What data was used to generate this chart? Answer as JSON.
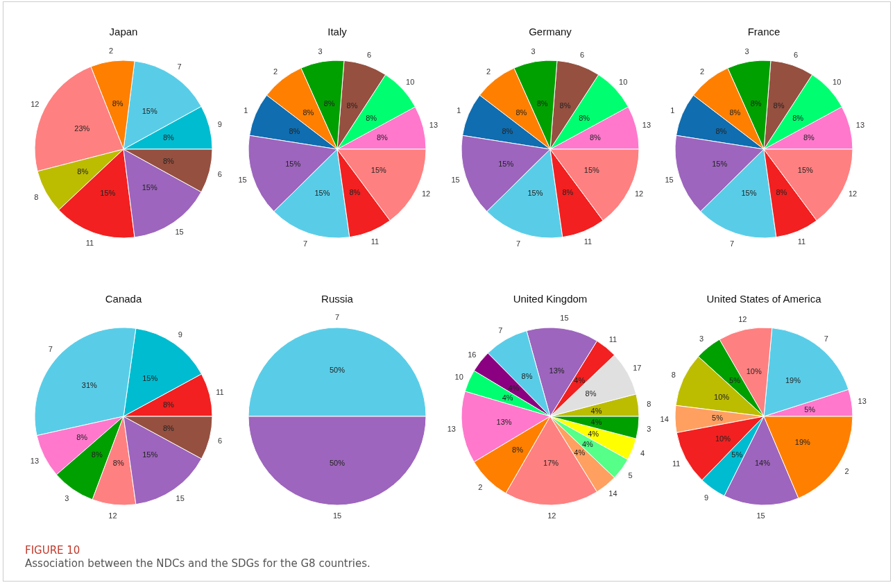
{
  "chart_data": [
    {
      "type": "pie",
      "title": "Japan",
      "categories": [
        "9",
        "7",
        "2",
        "12",
        "8",
        "11",
        "15",
        "6"
      ],
      "values": [
        8,
        15,
        8,
        23,
        8,
        15,
        15,
        8
      ],
      "value_labels": [
        "8%",
        "15%",
        "8%",
        "23%",
        "8%",
        "15%",
        "15%",
        "8%"
      ],
      "colors": [
        "#00bcd0",
        "#59cde8",
        "#ff7f00",
        "#ff8080",
        "#bcbc00",
        "#f22020",
        "#9d65bd",
        "#955040"
      ],
      "annotations": [
        "FIGURE 10",
        "Association between the NDCs and the SDGs for the G8 countries."
      ]
    },
    {
      "type": "pie",
      "title": "Italy",
      "categories": [
        "13",
        "10",
        "6",
        "3",
        "2",
        "1",
        "15",
        "7",
        "11",
        "12"
      ],
      "values": [
        8,
        8,
        8,
        8,
        8,
        8,
        15,
        15,
        8,
        15
      ],
      "value_labels": [
        "8%",
        "8%",
        "8%",
        "8%",
        "8%",
        "8%",
        "15%",
        "15%",
        "8%",
        "15%"
      ],
      "colors": [
        "#ff78cc",
        "#00ff70",
        "#955040",
        "#00a000",
        "#ff7f00",
        "#0f6db0",
        "#9d65bd",
        "#59cde8",
        "#f22020",
        "#ff8080"
      ]
    },
    {
      "type": "pie",
      "title": "Germany",
      "categories": [
        "13",
        "10",
        "6",
        "3",
        "2",
        "1",
        "15",
        "7",
        "11",
        "12"
      ],
      "values": [
        8,
        8,
        8,
        8,
        8,
        8,
        15,
        15,
        8,
        15
      ],
      "value_labels": [
        "8%",
        "8%",
        "8%",
        "8%",
        "8%",
        "8%",
        "15%",
        "15%",
        "8%",
        "15%"
      ],
      "colors": [
        "#ff78cc",
        "#00ff70",
        "#955040",
        "#00a000",
        "#ff7f00",
        "#0f6db0",
        "#9d65bd",
        "#59cde8",
        "#f22020",
        "#ff8080"
      ]
    },
    {
      "type": "pie",
      "title": "France",
      "categories": [
        "13",
        "10",
        "6",
        "3",
        "2",
        "1",
        "15",
        "7",
        "11",
        "12"
      ],
      "values": [
        8,
        8,
        8,
        8,
        8,
        8,
        15,
        15,
        8,
        15
      ],
      "value_labels": [
        "8%",
        "8%",
        "8%",
        "8%",
        "8%",
        "8%",
        "15%",
        "15%",
        "8%",
        "15%"
      ],
      "colors": [
        "#ff78cc",
        "#00ff70",
        "#955040",
        "#00a000",
        "#ff7f00",
        "#0f6db0",
        "#9d65bd",
        "#59cde8",
        "#f22020",
        "#ff8080"
      ]
    },
    {
      "type": "pie",
      "title": "Canada",
      "categories": [
        "11",
        "9",
        "7",
        "13",
        "3",
        "12",
        "15",
        "6"
      ],
      "values": [
        8,
        15,
        31,
        8,
        8,
        8,
        15,
        8
      ],
      "value_labels": [
        "8%",
        "15%",
        "31%",
        "8%",
        "8%",
        "8%",
        "15%",
        "8%"
      ],
      "colors": [
        "#f22020",
        "#00bcd0",
        "#59cde8",
        "#ff78cc",
        "#00a000",
        "#ff8080",
        "#9d65bd",
        "#955040"
      ]
    },
    {
      "type": "pie",
      "title": "Russia",
      "categories": [
        "7",
        "15"
      ],
      "values": [
        50,
        50
      ],
      "value_labels": [
        "50%",
        "50%"
      ],
      "colors": [
        "#59cde8",
        "#9d65bd"
      ]
    },
    {
      "type": "pie",
      "title": "United Kingdom",
      "categories": [
        "8",
        "17",
        "11",
        "15",
        "7",
        "16",
        "10",
        "13",
        "2",
        "12",
        "14",
        "5",
        "4",
        "3"
      ],
      "values": [
        4,
        8,
        4,
        13,
        8,
        4,
        4,
        13,
        8,
        17,
        4,
        4,
        4,
        4
      ],
      "value_labels": [
        "4%",
        "8%",
        "4%",
        "13%",
        "8%",
        "4%",
        "4%",
        "13%",
        "8%",
        "17%",
        "4%",
        "4%",
        "4%",
        "4%"
      ],
      "colors": [
        "#bcbc00",
        "#e0e0e0",
        "#f22020",
        "#9d65bd",
        "#59cde8",
        "#8b0080",
        "#00ff70",
        "#ff78cc",
        "#ff7f00",
        "#ff8080",
        "#ffa060",
        "#55ff88",
        "#ffff00",
        "#00a000"
      ]
    },
    {
      "type": "pie",
      "title": "United States of America",
      "categories": [
        "13",
        "7",
        "12",
        "3",
        "8",
        "14",
        "11",
        "9",
        "15",
        "2"
      ],
      "values": [
        5,
        19,
        10,
        5,
        10,
        5,
        10,
        5,
        14,
        19
      ],
      "value_labels": [
        "5%",
        "19%",
        "10%",
        "5%",
        "10%",
        "5%",
        "10%",
        "5%",
        "14%",
        "19%"
      ],
      "colors": [
        "#ff78cc",
        "#59cde8",
        "#ff8080",
        "#00a000",
        "#bcbc00",
        "#ffa060",
        "#f22020",
        "#00bcd0",
        "#9d65bd",
        "#ff7f00"
      ]
    }
  ]
}
